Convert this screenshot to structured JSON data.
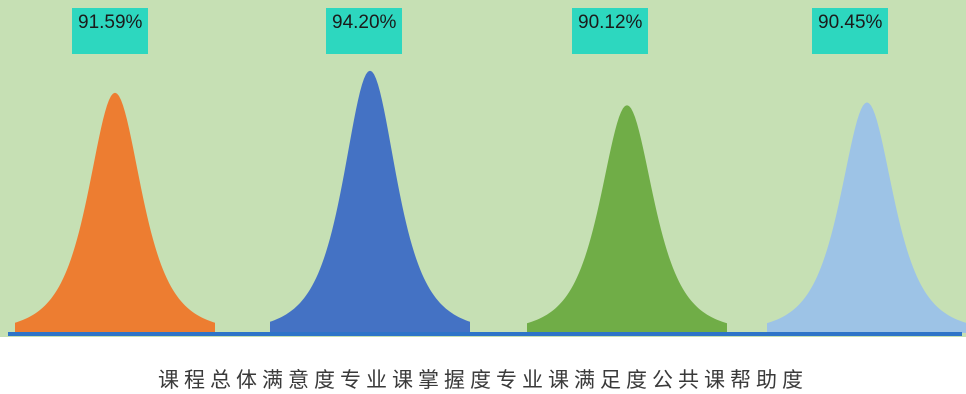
{
  "chart_data": {
    "type": "area",
    "categories": [
      "课程总体满意度",
      "专业课掌握度",
      "专业课满足度",
      "公共课帮助度"
    ],
    "values": [
      91.59,
      94.2,
      90.12,
      90.45
    ],
    "data_labels": [
      "91.59%",
      "94.20%",
      "90.12%",
      "90.45%"
    ],
    "grid": false,
    "legend": "none"
  },
  "colors": {
    "background": "#c6e0b4",
    "baseline": "#2e74c8",
    "label_box": "#2dd7bf",
    "peaks": [
      "#ed7d31",
      "#4472c4",
      "#70ad47",
      "#9dc3e6"
    ]
  }
}
